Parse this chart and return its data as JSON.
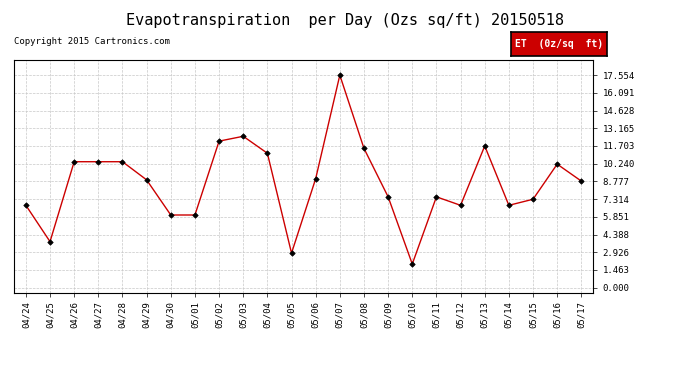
{
  "title": "Evapotranspiration  per Day (Ozs sq/ft) 20150518",
  "copyright": "Copyright 2015 Cartronics.com",
  "legend_label": "ET  (0z/sq  ft)",
  "legend_bg": "#cc0000",
  "legend_fg": "#ffffff",
  "x_labels": [
    "04/24",
    "04/25",
    "04/26",
    "04/27",
    "04/28",
    "04/29",
    "04/30",
    "05/01",
    "05/02",
    "05/03",
    "05/04",
    "05/05",
    "05/06",
    "05/07",
    "05/08",
    "05/09",
    "05/10",
    "05/11",
    "05/12",
    "05/13",
    "05/14",
    "05/15",
    "05/16",
    "05/17"
  ],
  "y_values": [
    6.8,
    3.8,
    10.4,
    10.4,
    10.4,
    8.9,
    6.0,
    6.0,
    12.1,
    12.5,
    11.1,
    2.85,
    9.0,
    17.55,
    11.5,
    7.5,
    1.95,
    7.5,
    6.8,
    11.7,
    6.8,
    7.3,
    10.2,
    8.8
  ],
  "line_color": "#cc0000",
  "marker_color": "#000000",
  "bg_color": "#ffffff",
  "plot_bg": "#ffffff",
  "grid_color": "#c8c8c8",
  "title_fontsize": 11,
  "y_ticks": [
    0.0,
    1.463,
    2.926,
    4.388,
    5.851,
    7.314,
    8.777,
    10.24,
    11.703,
    13.165,
    14.628,
    16.091,
    17.554
  ],
  "ylim": [
    -0.4,
    18.8
  ]
}
